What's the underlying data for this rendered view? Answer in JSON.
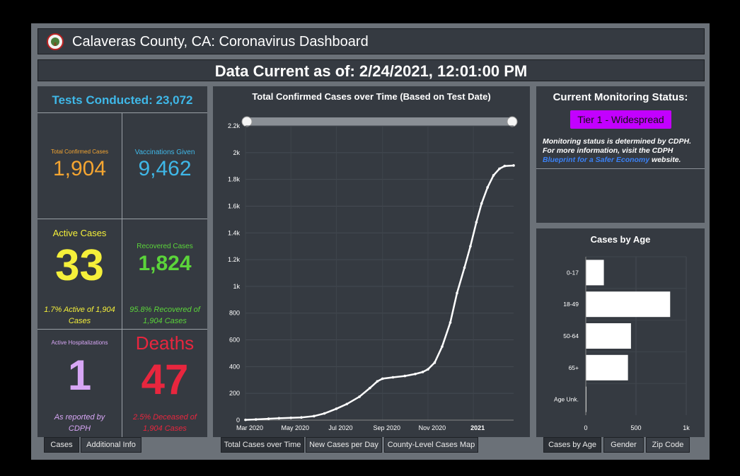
{
  "header": {
    "title": "Calaveras County, CA: Coronavirus Dashboard"
  },
  "date_bar": {
    "text": "Data Current as of: 2/24/2021, 12:01:00 PM"
  },
  "stats": {
    "tests": "Tests Conducted: 23,072",
    "confirmed": {
      "label": "Total Confirmed Cases",
      "value": "1,904",
      "color": "#f4a531"
    },
    "vaccinations": {
      "label": "Vaccinations Given",
      "value": "9,462",
      "color": "#3fb8e8"
    },
    "active": {
      "label": "Active Cases",
      "value": "33",
      "sub": "1.7% Active of 1,904 Cases",
      "color": "#f5f03a"
    },
    "recovered": {
      "label": "Recovered Cases",
      "value": "1,824",
      "sub": "95.8% Recovered of 1,904 Cases",
      "color": "#5bd43a"
    },
    "hospitalizations": {
      "label": "Active Hospitalizations",
      "value": "1",
      "sub": "As reported by CDPH",
      "color": "#d7a6f5"
    },
    "deaths": {
      "label": "Deaths",
      "value": "47",
      "sub": "2.5% Deceased of 1,904 Cases",
      "color": "#e8263e"
    }
  },
  "left_tabs": [
    "Cases",
    "Additional Info"
  ],
  "center_tabs": [
    "Total Cases over Time",
    "New Cases per Day",
    "County-Level Cases Map"
  ],
  "right_tabs": [
    "Cases by Age",
    "Gender",
    "Zip Code"
  ],
  "status": {
    "heading": "Current Monitoring Status:",
    "tier": "Tier 1 - Widespread",
    "note_pre": "Monitoring status is determined by CDPH. For more information, visit the CDPH",
    "note_link": "Blueprint for a Safer Economy",
    "note_post": "website."
  },
  "chart_data": [
    {
      "type": "line",
      "title": "Total Confirmed Cases over Time (Based on Test Date)",
      "x_ticks": [
        "Mar 2020",
        "May 2020",
        "Jul 2020",
        "Sep 2020",
        "Nov 2020",
        "2021"
      ],
      "y_ticks": [
        "0",
        "200",
        "400",
        "600",
        "800",
        "1k",
        "1.2k",
        "1.4k",
        "1.6k",
        "1.8k",
        "2k",
        "2.2k"
      ],
      "ylim": [
        0,
        2200
      ],
      "xlim": [
        "2020-03-01",
        "2021-02-24"
      ],
      "series": [
        {
          "x": [
            "2020-03-01",
            "2020-03-15",
            "2020-04-01",
            "2020-04-15",
            "2020-05-01",
            "2020-05-15",
            "2020-06-01",
            "2020-06-15",
            "2020-07-01",
            "2020-07-15",
            "2020-08-01",
            "2020-08-15",
            "2020-08-25",
            "2020-09-01",
            "2020-09-15",
            "2020-10-01",
            "2020-10-15",
            "2020-10-25",
            "2020-11-01",
            "2020-11-10",
            "2020-11-20",
            "2020-12-01",
            "2020-12-10",
            "2020-12-20",
            "2020-12-28",
            "2021-01-05",
            "2021-01-12",
            "2021-01-20",
            "2021-01-28",
            "2021-02-05",
            "2021-02-12",
            "2021-02-24"
          ],
          "values": [
            2,
            5,
            10,
            14,
            17,
            20,
            30,
            50,
            85,
            120,
            175,
            240,
            290,
            310,
            320,
            330,
            345,
            360,
            380,
            430,
            550,
            730,
            950,
            1140,
            1300,
            1480,
            1620,
            1740,
            1830,
            1880,
            1900,
            1904
          ]
        }
      ]
    },
    {
      "type": "bar",
      "orientation": "horizontal",
      "title": "Cases by Age",
      "categories": [
        "0-17",
        "18-49",
        "50-64",
        "65+",
        "Age Unk."
      ],
      "values": [
        180,
        840,
        450,
        420,
        3
      ],
      "x_ticks": [
        "0",
        "500",
        "1k"
      ],
      "xlim": [
        0,
        1000
      ]
    }
  ]
}
